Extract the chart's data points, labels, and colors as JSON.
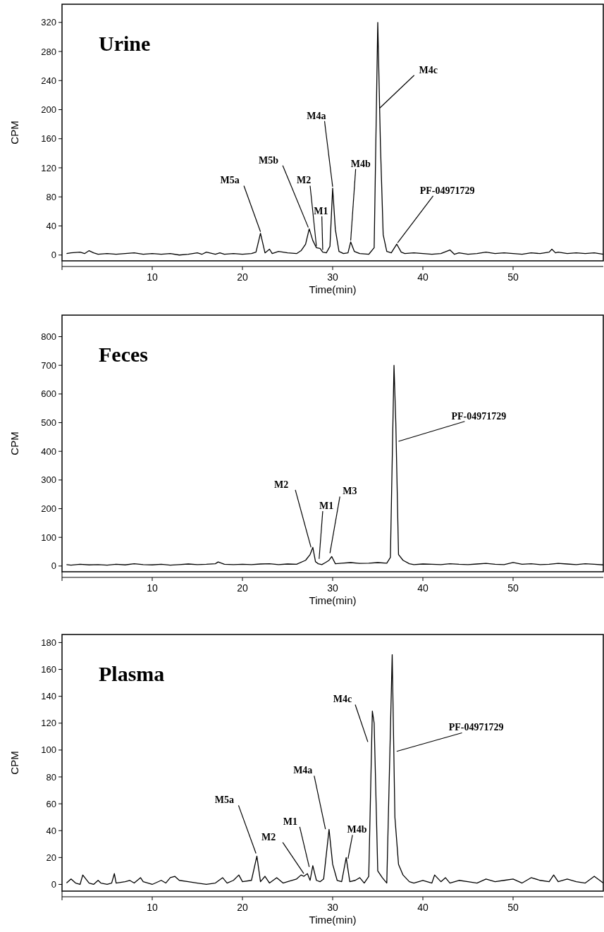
{
  "chart_data": [
    {
      "type": "line",
      "title": "Urine",
      "xlabel": "Time(min)",
      "ylabel": "CPM",
      "xlim": [
        0,
        60
      ],
      "xticks": [
        10,
        20,
        30,
        40,
        50
      ],
      "ylim": [
        -8,
        345
      ],
      "yticks": [
        0,
        40,
        80,
        120,
        160,
        200,
        240,
        280,
        320
      ],
      "grid": false,
      "marker": "none",
      "series": [
        {
          "color": "#000000",
          "x": [
            0.5,
            1,
            2,
            2.5,
            3,
            3.5,
            4,
            5,
            6,
            7,
            8,
            9,
            10,
            11,
            12,
            13,
            14,
            15,
            15.5,
            16,
            17,
            17.5,
            18,
            19,
            20,
            21,
            21.5,
            22,
            22.5,
            23,
            23.3,
            24,
            25,
            26,
            26.5,
            27,
            27.4,
            27.8,
            28.2,
            28.6,
            28.9,
            29.3,
            29.7,
            30,
            30.3,
            30.7,
            31.2,
            31.7,
            32,
            32.4,
            33,
            34,
            34.6,
            35,
            35.3,
            35.6,
            36,
            36.5,
            37.1,
            37.6,
            38,
            39,
            40,
            41,
            42,
            43,
            43.5,
            44,
            45,
            46,
            47,
            48,
            49,
            50,
            51,
            52,
            53,
            54,
            54.3,
            54.7,
            55,
            56,
            57,
            58,
            59,
            60
          ],
          "values": [
            2,
            3,
            4,
            2,
            6,
            3,
            1,
            2,
            1,
            2,
            3,
            1,
            2,
            1,
            2,
            0,
            1,
            3,
            1,
            4,
            1,
            3,
            1,
            2,
            1,
            2,
            4,
            30,
            3,
            8,
            2,
            5,
            3,
            2,
            6,
            15,
            36,
            20,
            10,
            9,
            4,
            3,
            12,
            92,
            35,
            5,
            2,
            3,
            18,
            5,
            2,
            1,
            10,
            320,
            150,
            28,
            5,
            3,
            15,
            4,
            2,
            3,
            2,
            1,
            2,
            7,
            1,
            3,
            1,
            2,
            4,
            2,
            3,
            2,
            1,
            3,
            2,
            4,
            8,
            3,
            4,
            2,
            3,
            2,
            3,
            1
          ]
        }
      ],
      "annotations": [
        {
          "text": "M5a",
          "x": 22,
          "y": 30
        },
        {
          "text": "M5b",
          "x": 27.3,
          "y": 36
        },
        {
          "text": "M2",
          "x": 28.2,
          "y": 10
        },
        {
          "text": "M1",
          "x": 28.9,
          "y": 5
        },
        {
          "text": "M4a",
          "x": 30,
          "y": 92
        },
        {
          "text": "M4b",
          "x": 32,
          "y": 18
        },
        {
          "text": "M4c",
          "x": 35.2,
          "y": 200
        },
        {
          "text": "PF-04971729",
          "x": 37.2,
          "y": 15
        }
      ]
    },
    {
      "type": "line",
      "title": "Feces",
      "xlabel": "Time(min)",
      "ylabel": "CPM",
      "xlim": [
        0,
        60
      ],
      "xticks": [
        10,
        20,
        30,
        40,
        50
      ],
      "ylim": [
        -20,
        875
      ],
      "yticks": [
        0,
        100,
        200,
        300,
        400,
        500,
        600,
        700,
        800
      ],
      "grid": false,
      "marker": "none",
      "series": [
        {
          "color": "#000000",
          "x": [
            0.5,
            1,
            2,
            3,
            4,
            5,
            6,
            7,
            8,
            9,
            10,
            11,
            12,
            13,
            14,
            15,
            16,
            17,
            17.3,
            18,
            19,
            20,
            21,
            22,
            23,
            24,
            25,
            26,
            27,
            27.5,
            27.8,
            28.1,
            28.4,
            28.8,
            29.2,
            29.6,
            29.9,
            30.3,
            31,
            32,
            33,
            34,
            35,
            36,
            36.4,
            36.8,
            37,
            37.3,
            37.8,
            38.5,
            39,
            40,
            41,
            42,
            43,
            44,
            45,
            46,
            47,
            48,
            49,
            50,
            51,
            52,
            53,
            54,
            55,
            56,
            57,
            58,
            59,
            60
          ],
          "values": [
            5,
            3,
            6,
            4,
            5,
            3,
            6,
            4,
            8,
            5,
            4,
            6,
            3,
            5,
            7,
            5,
            6,
            8,
            14,
            6,
            5,
            6,
            5,
            7,
            8,
            5,
            7,
            6,
            20,
            40,
            65,
            15,
            8,
            5,
            12,
            20,
            33,
            8,
            10,
            12,
            9,
            10,
            12,
            10,
            30,
            700,
            500,
            40,
            20,
            8,
            5,
            7,
            6,
            5,
            8,
            6,
            5,
            7,
            9,
            6,
            5,
            12,
            6,
            8,
            5,
            6,
            9,
            7,
            5,
            8,
            6,
            4
          ]
        }
      ],
      "annotations": [
        {
          "text": "M2",
          "x": 27.6,
          "y": 60
        },
        {
          "text": "M1",
          "x": 28.5,
          "y": 20
        },
        {
          "text": "M3",
          "x": 29.7,
          "y": 40
        },
        {
          "text": "PF-04971729",
          "x": 37.3,
          "y": 430
        }
      ]
    },
    {
      "type": "line",
      "title": "Plasma",
      "xlabel": "Time(min)",
      "ylabel": "CPM",
      "xlim": [
        0,
        60
      ],
      "xticks": [
        10,
        20,
        30,
        40,
        50
      ],
      "ylim": [
        -5,
        186
      ],
      "yticks": [
        0,
        20,
        40,
        60,
        80,
        100,
        120,
        140,
        160,
        180
      ],
      "grid": false,
      "marker": "none",
      "series": [
        {
          "color": "#000000",
          "x": [
            0.5,
            1,
            1.5,
            2,
            2.3,
            3,
            3.5,
            4,
            4.3,
            5,
            5.5,
            5.8,
            6,
            7,
            7.5,
            8,
            8.7,
            9,
            10,
            11,
            11.5,
            12,
            12.5,
            13,
            14,
            15,
            16,
            17,
            17.8,
            18.3,
            19,
            19.6,
            20,
            21,
            21.6,
            22,
            22.5,
            23,
            23.8,
            24.5,
            25,
            26,
            26.5,
            26.8,
            27.2,
            27.5,
            27.8,
            28.2,
            28.6,
            29,
            29.6,
            30,
            30.5,
            31,
            31.5,
            31.9,
            32.5,
            33,
            33.5,
            34,
            34.4,
            34.6,
            35,
            35.5,
            36,
            36.6,
            36.9,
            37.3,
            37.8,
            38.5,
            39,
            40,
            41,
            41.3,
            42,
            42.5,
            43,
            44,
            45,
            46,
            47,
            48,
            49,
            50,
            51,
            52,
            53,
            54,
            54.5,
            55,
            56,
            57,
            58,
            59,
            60
          ],
          "values": [
            1,
            4,
            1,
            0,
            7,
            1,
            0,
            3,
            1,
            0,
            1,
            8,
            1,
            2,
            3,
            1,
            5,
            2,
            0,
            3,
            1,
            5,
            6,
            3,
            2,
            1,
            0,
            1,
            5,
            1,
            3,
            7,
            2,
            3,
            21,
            2,
            6,
            1,
            5,
            1,
            2,
            4,
            7,
            6,
            8,
            3,
            14,
            3,
            2,
            4,
            41,
            15,
            3,
            2,
            20,
            2,
            3,
            5,
            1,
            6,
            129,
            120,
            10,
            5,
            1,
            171,
            50,
            15,
            7,
            2,
            1,
            3,
            1,
            7,
            2,
            5,
            1,
            3,
            2,
            1,
            4,
            2,
            3,
            4,
            1,
            5,
            3,
            2,
            7,
            2,
            4,
            2,
            1,
            6,
            1
          ]
        }
      ],
      "annotations": [
        {
          "text": "M5a",
          "x": 21.5,
          "y": 22
        },
        {
          "text": "M2",
          "x": 26.8,
          "y": 7
        },
        {
          "text": "M1",
          "x": 27.4,
          "y": 12
        },
        {
          "text": "M4a",
          "x": 29.2,
          "y": 40
        },
        {
          "text": "M4b",
          "x": 31.7,
          "y": 18
        },
        {
          "text": "M4c",
          "x": 33.9,
          "y": 105
        },
        {
          "text": "PF-04971729",
          "x": 37.1,
          "y": 98
        }
      ]
    }
  ]
}
